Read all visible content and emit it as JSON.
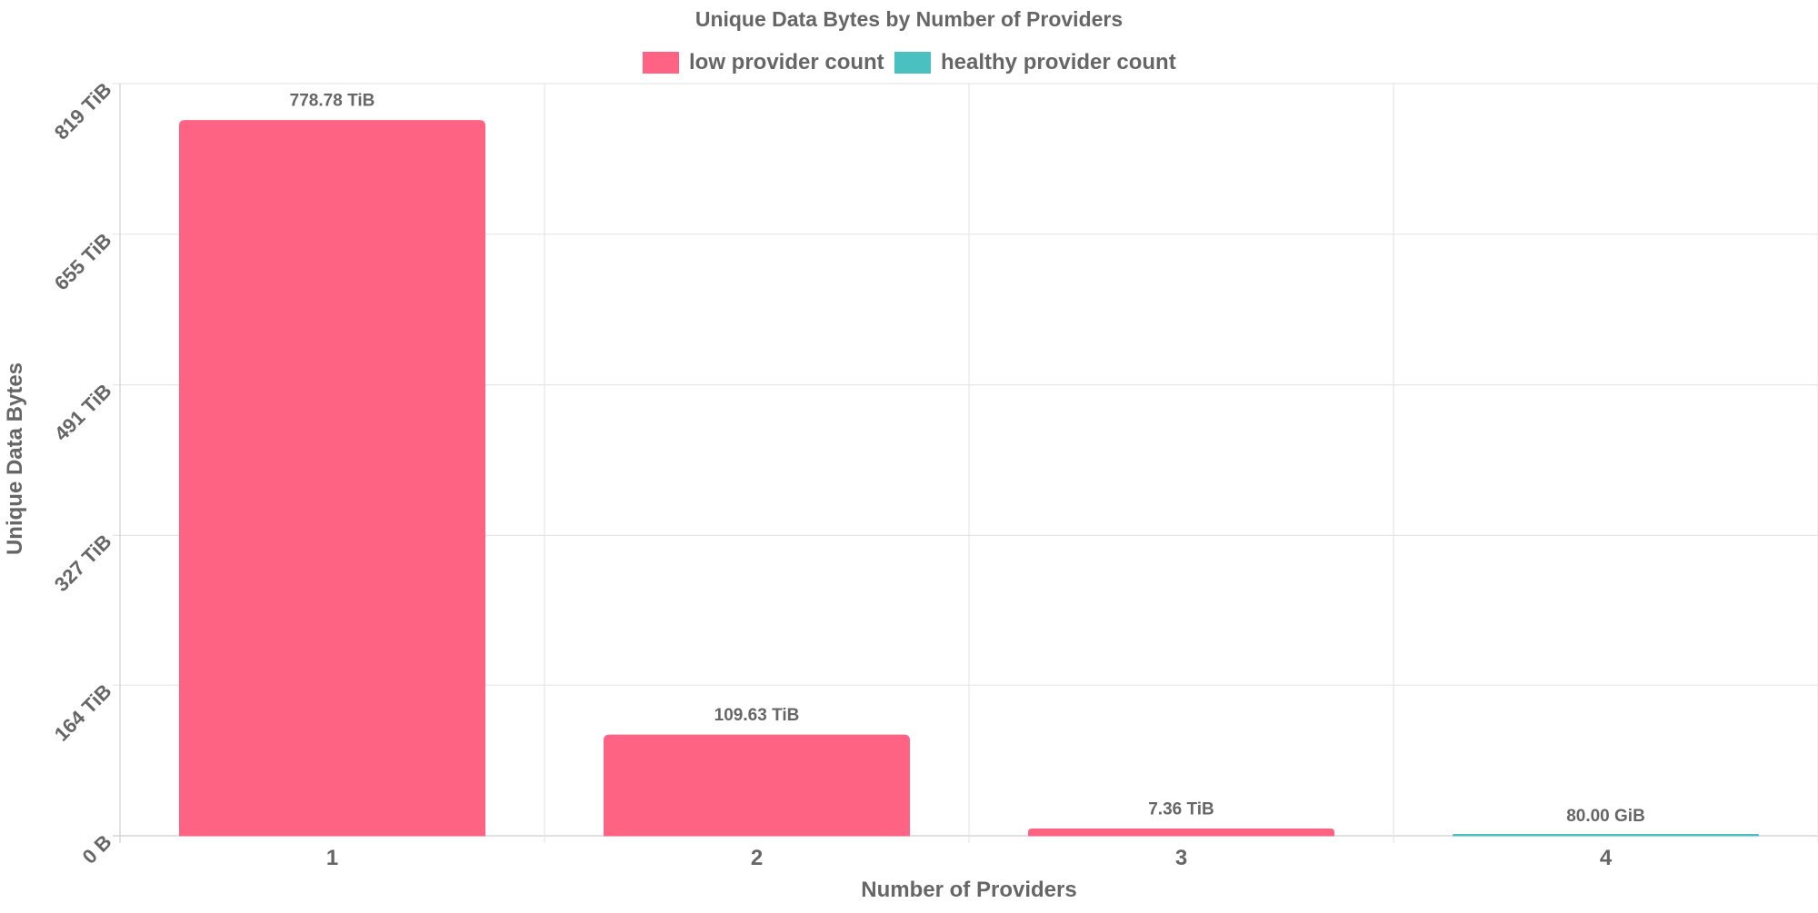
{
  "colors": {
    "low": "#ff6384",
    "healthy": "#4bc0c0",
    "grid": "#e6e6e6",
    "axis": "#cfcfcf",
    "text": "#666666"
  },
  "chart_data": {
    "type": "bar",
    "title": "Unique Data Bytes by Number of Providers",
    "xlabel": "Number of Providers",
    "ylabel": "Unique Data Bytes",
    "categories": [
      "1",
      "2",
      "3",
      "4"
    ],
    "y_unit": "TiB",
    "ylim": [
      0,
      819
    ],
    "y_ticks": [
      {
        "value": 0,
        "label": "0 B"
      },
      {
        "value": 164,
        "label": "164 TiB"
      },
      {
        "value": 327,
        "label": "327 TiB"
      },
      {
        "value": 491,
        "label": "491 TiB"
      },
      {
        "value": 655,
        "label": "655 TiB"
      },
      {
        "value": 819,
        "label": "819 TiB"
      }
    ],
    "legend_position": "top",
    "grid": true,
    "series": [
      {
        "name": "low provider count",
        "color": "#ff6384",
        "values": [
          778.78,
          109.63,
          7.36,
          0
        ],
        "labels": [
          "778.78 TiB",
          "109.63 TiB",
          "7.36 TiB",
          ""
        ]
      },
      {
        "name": "healthy provider count",
        "color": "#4bc0c0",
        "values": [
          0,
          0,
          0,
          0.078125
        ],
        "labels": [
          "",
          "",
          "",
          "80.00 GiB"
        ]
      }
    ]
  }
}
